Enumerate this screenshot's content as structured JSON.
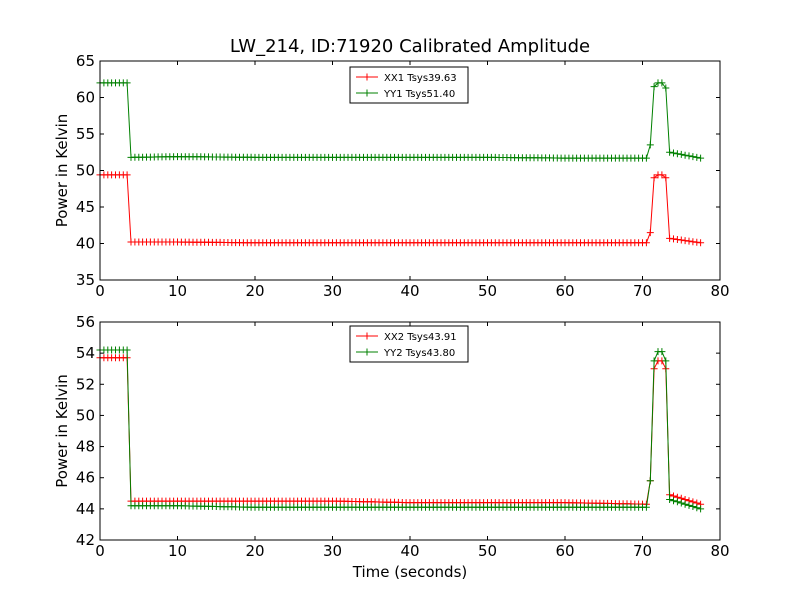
{
  "chart_data": [
    {
      "type": "line",
      "title": "LW_214, ID:71920 Calibrated Amplitude",
      "xlabel": "",
      "ylabel": "Power in Kelvin",
      "xlim": [
        0,
        80
      ],
      "ylim": [
        35,
        65
      ],
      "xticks": [
        "0",
        "10",
        "20",
        "30",
        "40",
        "50",
        "60",
        "70",
        "80"
      ],
      "yticks": [
        "35",
        "40",
        "45",
        "50",
        "55",
        "60",
        "65"
      ],
      "grid": false,
      "legend_position": "top-center",
      "marker": "+",
      "series": [
        {
          "name": "XX1 Tsys39.63",
          "color": "#ff0000",
          "x": [
            0,
            3.5,
            4.0,
            10,
            20,
            30,
            40,
            50,
            60,
            70.5,
            71.0,
            71.5,
            72.0,
            72.5,
            73.0,
            73.5,
            77.5
          ],
          "y": [
            49.4,
            49.4,
            40.2,
            40.2,
            40.1,
            40.1,
            40.1,
            40.1,
            40.1,
            40.1,
            41.5,
            49.0,
            49.4,
            49.4,
            49.0,
            40.7,
            40.1
          ]
        },
        {
          "name": "YY1 Tsys51.40",
          "color": "#008000",
          "x": [
            0,
            3.5,
            4.0,
            10,
            20,
            30,
            40,
            50,
            60,
            70.5,
            71.0,
            71.5,
            72.0,
            72.5,
            73.0,
            73.5,
            77.5
          ],
          "y": [
            62.0,
            62.0,
            51.8,
            51.9,
            51.8,
            51.8,
            51.8,
            51.8,
            51.7,
            51.7,
            53.5,
            61.5,
            62.0,
            62.0,
            61.3,
            52.5,
            51.7
          ]
        }
      ]
    },
    {
      "type": "line",
      "title": "",
      "xlabel": "Time (seconds)",
      "ylabel": "Power in Kelvin",
      "xlim": [
        0,
        80
      ],
      "ylim": [
        42,
        56
      ],
      "xticks": [
        "0",
        "10",
        "20",
        "30",
        "40",
        "50",
        "60",
        "70",
        "80"
      ],
      "yticks": [
        "42",
        "44",
        "46",
        "48",
        "50",
        "52",
        "54",
        "56"
      ],
      "grid": false,
      "legend_position": "top-center",
      "marker": "+",
      "series": [
        {
          "name": "XX2 Tsys43.91",
          "color": "#ff0000",
          "x": [
            0,
            3.5,
            4.0,
            10,
            20,
            30,
            40,
            50,
            60,
            70.5,
            71.0,
            71.5,
            72.0,
            72.5,
            73.0,
            73.5,
            77.5
          ],
          "y": [
            53.7,
            53.7,
            44.5,
            44.5,
            44.5,
            44.5,
            44.4,
            44.4,
            44.4,
            44.3,
            45.8,
            53.0,
            53.5,
            53.5,
            53.0,
            44.9,
            44.3
          ]
        },
        {
          "name": "YY2 Tsys43.80",
          "color": "#008000",
          "x": [
            0,
            3.5,
            4.0,
            10,
            20,
            30,
            40,
            50,
            60,
            70.5,
            71.0,
            71.5,
            72.0,
            72.5,
            73.0,
            73.5,
            77.5
          ],
          "y": [
            54.2,
            54.2,
            44.2,
            44.2,
            44.1,
            44.1,
            44.1,
            44.1,
            44.1,
            44.1,
            45.8,
            53.5,
            54.1,
            54.1,
            53.5,
            44.6,
            44.0
          ]
        }
      ]
    }
  ]
}
